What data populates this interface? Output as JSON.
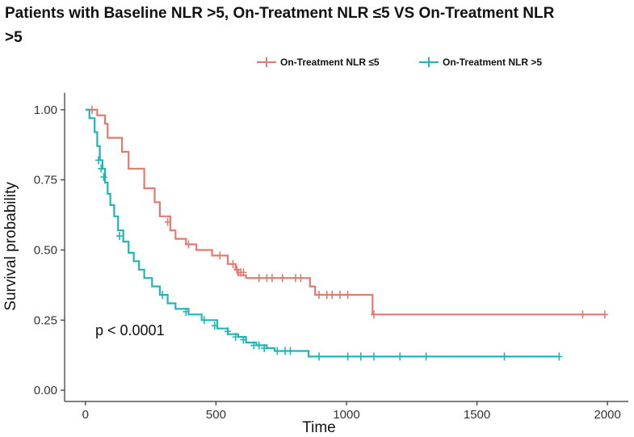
{
  "chart_data": {
    "type": "line",
    "title": "Patients with Baseline NLR >5, On-Treatment NLR ≤5 VS On-Treatment NLR >5",
    "xlabel": "Time",
    "ylabel": "Survival probability",
    "xlim": [
      -80,
      2080
    ],
    "ylim": [
      -0.04,
      1.06
    ],
    "xticks": [
      0,
      500,
      1000,
      1500,
      2000
    ],
    "xtick_labels": [
      "0",
      "500",
      "1000",
      "1500",
      "2000"
    ],
    "yticks": [
      0,
      0.25,
      0.5,
      0.75,
      1.0
    ],
    "ytick_labels": [
      "0.00",
      "0.25",
      "0.50",
      "0.75",
      "1.00"
    ],
    "grid": false,
    "legend_position": "top-right",
    "annotation": "p < 0.0001",
    "series": [
      {
        "name": "On-Treatment NLR ≤5",
        "color": "#e07b72",
        "step_points": [
          [
            0,
            1.0
          ],
          [
            45,
            0.98
          ],
          [
            75,
            0.95
          ],
          [
            85,
            0.9
          ],
          [
            140,
            0.85
          ],
          [
            165,
            0.79
          ],
          [
            225,
            0.72
          ],
          [
            265,
            0.67
          ],
          [
            285,
            0.62
          ],
          [
            325,
            0.57
          ],
          [
            345,
            0.54
          ],
          [
            385,
            0.52
          ],
          [
            425,
            0.5
          ],
          [
            485,
            0.48
          ],
          [
            545,
            0.45
          ],
          [
            575,
            0.43
          ],
          [
            585,
            0.41
          ],
          [
            615,
            0.4
          ],
          [
            860,
            0.37
          ],
          [
            880,
            0.34
          ],
          [
            1100,
            0.27
          ],
          [
            1990,
            0.27
          ]
        ],
        "censor_points": [
          [
            25,
            1.0
          ],
          [
            315,
            0.6
          ],
          [
            395,
            0.52
          ],
          [
            515,
            0.48
          ],
          [
            565,
            0.45
          ],
          [
            580,
            0.43
          ],
          [
            595,
            0.42
          ],
          [
            605,
            0.42
          ],
          [
            665,
            0.4
          ],
          [
            695,
            0.4
          ],
          [
            715,
            0.4
          ],
          [
            755,
            0.4
          ],
          [
            805,
            0.4
          ],
          [
            825,
            0.4
          ],
          [
            895,
            0.34
          ],
          [
            925,
            0.34
          ],
          [
            945,
            0.34
          ],
          [
            975,
            0.34
          ],
          [
            1005,
            0.34
          ],
          [
            1105,
            0.27
          ],
          [
            1905,
            0.27
          ],
          [
            1990,
            0.27
          ]
        ]
      },
      {
        "name": "On-Treatment NLR >5",
        "color": "#22b5b5",
        "step_points": [
          [
            0,
            1.0
          ],
          [
            15,
            0.97
          ],
          [
            35,
            0.92
          ],
          [
            45,
            0.87
          ],
          [
            55,
            0.82
          ],
          [
            65,
            0.79
          ],
          [
            75,
            0.74
          ],
          [
            85,
            0.7
          ],
          [
            95,
            0.66
          ],
          [
            110,
            0.62
          ],
          [
            125,
            0.57
          ],
          [
            145,
            0.53
          ],
          [
            165,
            0.49
          ],
          [
            185,
            0.46
          ],
          [
            205,
            0.43
          ],
          [
            225,
            0.4
          ],
          [
            255,
            0.37
          ],
          [
            285,
            0.34
          ],
          [
            315,
            0.31
          ],
          [
            345,
            0.29
          ],
          [
            395,
            0.27
          ],
          [
            445,
            0.25
          ],
          [
            505,
            0.22
          ],
          [
            545,
            0.2
          ],
          [
            585,
            0.19
          ],
          [
            615,
            0.17
          ],
          [
            655,
            0.16
          ],
          [
            695,
            0.15
          ],
          [
            725,
            0.14
          ],
          [
            855,
            0.12
          ],
          [
            1815,
            0.12
          ]
        ],
        "censor_points": [
          [
            50,
            0.82
          ],
          [
            60,
            0.79
          ],
          [
            70,
            0.76
          ],
          [
            130,
            0.55
          ],
          [
            295,
            0.34
          ],
          [
            385,
            0.28
          ],
          [
            455,
            0.25
          ],
          [
            495,
            0.23
          ],
          [
            545,
            0.21
          ],
          [
            575,
            0.19
          ],
          [
            605,
            0.18
          ],
          [
            645,
            0.16
          ],
          [
            665,
            0.16
          ],
          [
            685,
            0.15
          ],
          [
            735,
            0.14
          ],
          [
            765,
            0.14
          ],
          [
            785,
            0.14
          ],
          [
            895,
            0.12
          ],
          [
            1005,
            0.12
          ],
          [
            1055,
            0.12
          ],
          [
            1105,
            0.12
          ],
          [
            1205,
            0.12
          ],
          [
            1305,
            0.12
          ],
          [
            1605,
            0.12
          ],
          [
            1815,
            0.12
          ]
        ]
      }
    ]
  }
}
